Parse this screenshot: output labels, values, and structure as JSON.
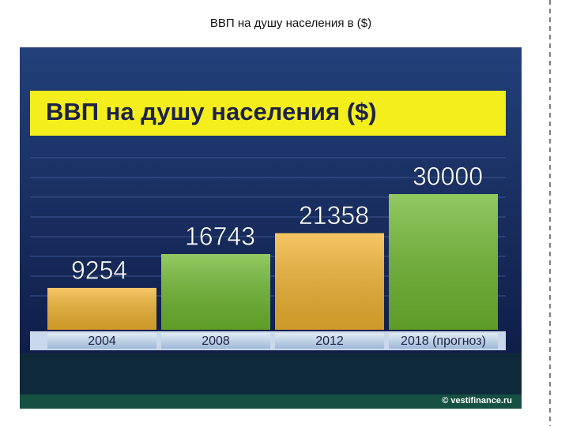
{
  "chart_data": {
    "type": "bar",
    "page_title": "ВВП на душу населения в ($)",
    "title": "ВВП на душу населения ($)",
    "categories": [
      "2004",
      "2008",
      "2012",
      "2018 (прогноз)"
    ],
    "values": [
      9254,
      16743,
      21358,
      30000
    ],
    "colors": [
      "#f2b431",
      "#6fb82f",
      "#f2b431",
      "#6fb82f"
    ],
    "source": "© vestifinance.ru"
  }
}
